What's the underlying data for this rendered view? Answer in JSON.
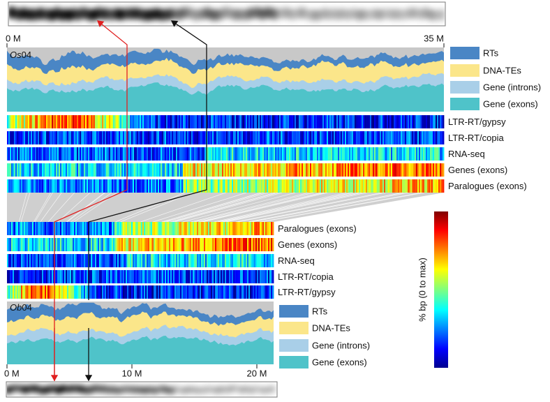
{
  "top_panel": {
    "chromosome": {
      "genus": "Os",
      "number": "04"
    },
    "axis": [
      "0 M",
      "35 M"
    ],
    "legend": [
      {
        "label": "RTs",
        "color": "#4a86c5"
      },
      {
        "label": "DNA-TEs",
        "color": "#fbe68a"
      },
      {
        "label": "Gene (introns)",
        "color": "#a9cfe8"
      },
      {
        "label": "Gene (exons)",
        "color": "#4fc3c9"
      }
    ],
    "tracks": [
      "LTR-RT/gypsy",
      "LTR-RT/copia",
      "RNA-seq",
      "Genes (exons)",
      "Paralogues (exons)"
    ]
  },
  "bottom_panel": {
    "chromosome": {
      "genus": "Ob",
      "number": "04"
    },
    "axis": [
      "0 M",
      "10 M",
      "20 M"
    ],
    "legend": [
      {
        "label": "RTs",
        "color": "#4a86c5"
      },
      {
        "label": "DNA-TEs",
        "color": "#fbe68a"
      },
      {
        "label": "Gene (introns)",
        "color": "#a9cfe8"
      },
      {
        "label": "Gene (exons)",
        "color": "#4fc3c9"
      }
    ],
    "tracks": [
      "Paralogues (exons)",
      "Genes (exons)",
      "RNA-seq",
      "LTR-RT/copia",
      "LTR-RT/gypsy"
    ]
  },
  "colorbar": {
    "label": "% bp (0 to max)"
  }
}
